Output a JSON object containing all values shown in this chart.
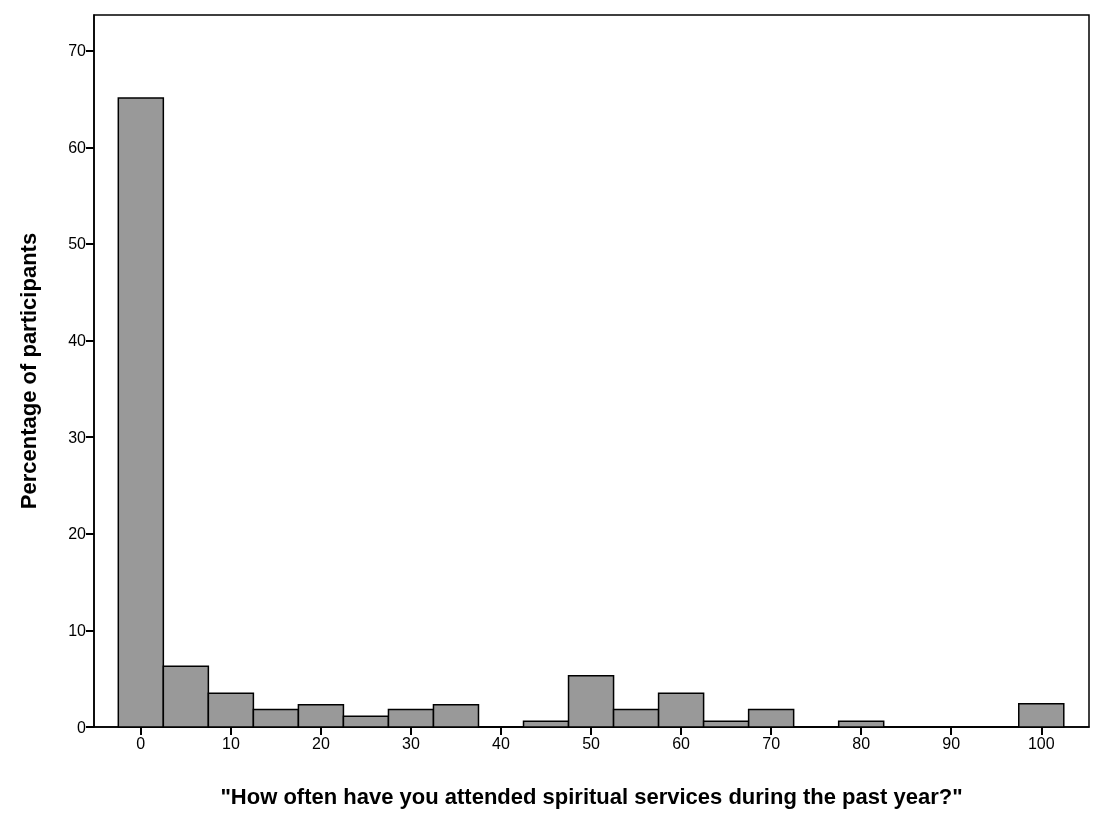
{
  "chart_data": {
    "type": "histogram",
    "xlabel": "\"How often have you attended spiritual services during the past year?\"",
    "ylabel": "Percentage of participants",
    "bins": [
      -2.5,
      2.5,
      7.5,
      12.5,
      17.5,
      22.5,
      27.5,
      32.5,
      37.5,
      42.5,
      47.5,
      52.5,
      57.5,
      62.5,
      67.5,
      72.5,
      77.5,
      82.5,
      87.5,
      92.5,
      97.5,
      102.5
    ],
    "values": [
      65.1,
      6.3,
      3.5,
      1.8,
      2.3,
      1.1,
      1.8,
      2.3,
      0,
      0.6,
      5.3,
      1.8,
      3.5,
      0.6,
      1.8,
      0,
      0.6,
      0,
      0,
      0,
      2.4
    ],
    "color": "#999999",
    "xlim": [
      -5.2,
      105.3
    ],
    "xticks": [
      0,
      10,
      20,
      30,
      40,
      50,
      60,
      70,
      80,
      90,
      100
    ],
    "ylim": [
      0,
      73.7
    ],
    "yticks": [
      0,
      10,
      20,
      30,
      40,
      50,
      60,
      70
    ],
    "grid": false
  }
}
